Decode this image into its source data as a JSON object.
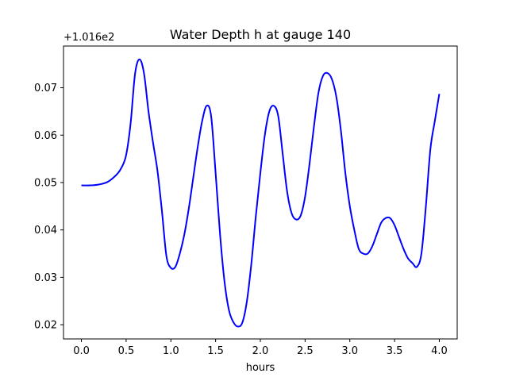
{
  "chart_data": {
    "type": "line",
    "title": "Water Depth h at gauge 140",
    "xlabel": "hours",
    "ylabel": "",
    "y_offset_label": "+1.016e2",
    "xlim": [
      -0.2,
      4.2
    ],
    "ylim": [
      0.017,
      0.0788
    ],
    "xticks": [
      0.0,
      0.5,
      1.0,
      1.5,
      2.0,
      2.5,
      3.0,
      3.5,
      4.0
    ],
    "xtick_labels": [
      "0.0",
      "0.5",
      "1.0",
      "1.5",
      "2.0",
      "2.5",
      "3.0",
      "3.5",
      "4.0"
    ],
    "yticks": [
      0.02,
      0.03,
      0.04,
      0.05,
      0.06,
      0.07
    ],
    "ytick_labels": [
      "0.02",
      "0.03",
      "0.04",
      "0.05",
      "0.06",
      "0.07"
    ],
    "grid": false,
    "legend": "none",
    "series": [
      {
        "color": "#0000ff",
        "x": [
          0.0,
          0.1,
          0.2,
          0.3,
          0.4,
          0.45,
          0.5,
          0.55,
          0.6,
          0.65,
          0.7,
          0.75,
          0.8,
          0.85,
          0.9,
          0.95,
          1.0,
          1.05,
          1.1,
          1.15,
          1.2,
          1.25,
          1.3,
          1.35,
          1.4,
          1.45,
          1.5,
          1.55,
          1.6,
          1.65,
          1.7,
          1.75,
          1.8,
          1.85,
          1.9,
          1.95,
          2.0,
          2.05,
          2.1,
          2.15,
          2.2,
          2.25,
          2.3,
          2.35,
          2.4,
          2.45,
          2.5,
          2.55,
          2.6,
          2.65,
          2.7,
          2.75,
          2.8,
          2.85,
          2.9,
          2.95,
          3.0,
          3.05,
          3.1,
          3.15,
          3.2,
          3.25,
          3.3,
          3.35,
          3.4,
          3.45,
          3.5,
          3.55,
          3.6,
          3.65,
          3.7,
          3.75,
          3.8,
          3.85,
          3.9,
          3.95,
          4.0
        ],
        "y": [
          0.0494,
          0.0494,
          0.0496,
          0.0502,
          0.0518,
          0.0532,
          0.0558,
          0.0625,
          0.073,
          0.076,
          0.073,
          0.065,
          0.0585,
          0.0525,
          0.044,
          0.0345,
          0.032,
          0.0322,
          0.035,
          0.039,
          0.0445,
          0.051,
          0.0575,
          0.063,
          0.0662,
          0.064,
          0.052,
          0.039,
          0.029,
          0.023,
          0.0205,
          0.0196,
          0.0205,
          0.025,
          0.033,
          0.043,
          0.052,
          0.06,
          0.065,
          0.0662,
          0.064,
          0.056,
          0.048,
          0.0435,
          0.0422,
          0.043,
          0.047,
          0.054,
          0.062,
          0.069,
          0.0725,
          0.0731,
          0.0718,
          0.068,
          0.061,
          0.052,
          0.045,
          0.04,
          0.036,
          0.035,
          0.035,
          0.0365,
          0.039,
          0.0415,
          0.0425,
          0.0425,
          0.041,
          0.0385,
          0.036,
          0.034,
          0.033,
          0.0322,
          0.035,
          0.045,
          0.057,
          0.063,
          0.0687
        ]
      }
    ]
  }
}
